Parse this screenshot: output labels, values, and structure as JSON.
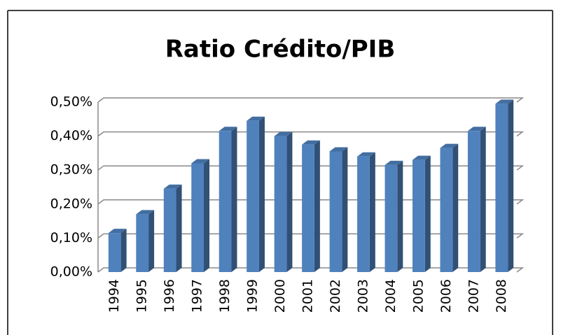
{
  "chart_data": {
    "type": "bar",
    "title": "Ratio Crédito/PIB",
    "categories": [
      "1994",
      "1995",
      "1996",
      "1997",
      "1998",
      "1999",
      "2000",
      "2001",
      "2002",
      "2003",
      "2004",
      "2005",
      "2006",
      "2007",
      "2008"
    ],
    "values": [
      0.115,
      0.17,
      0.245,
      0.32,
      0.415,
      0.445,
      0.4,
      0.375,
      0.355,
      0.34,
      0.315,
      0.33,
      0.365,
      0.415,
      0.495
    ],
    "color": "#4f81bd",
    "ylim": [
      0,
      0.5
    ],
    "yticks": [
      {
        "value": 0,
        "label": "0,00%"
      },
      {
        "value": 0.1,
        "label": "0,10%"
      },
      {
        "value": 0.2,
        "label": "0,20%"
      },
      {
        "value": 0.3,
        "label": "0,30%"
      },
      {
        "value": 0.4,
        "label": "0,40%"
      },
      {
        "value": 0.5,
        "label": "0,50%"
      }
    ],
    "grid": true
  }
}
